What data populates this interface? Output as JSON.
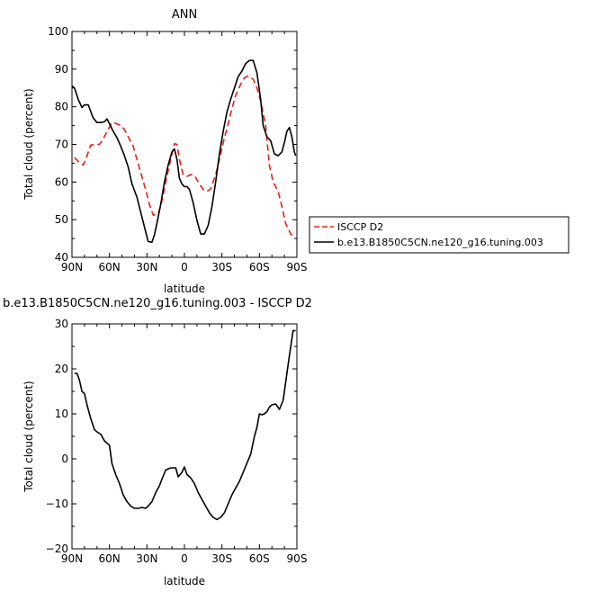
{
  "chart_data": [
    {
      "type": "line",
      "title": "ANN",
      "xlabel": "latitude",
      "ylabel": "Total cloud (percent)",
      "xlim": [
        90,
        -90
      ],
      "ylim": [
        40,
        100
      ],
      "x_ticks": [
        90,
        60,
        30,
        0,
        -30,
        -60,
        -90
      ],
      "x_tick_labels": [
        "90N",
        "60N",
        "30N",
        "0",
        "30S",
        "60S",
        "90S"
      ],
      "y_ticks": [
        40,
        50,
        60,
        70,
        80,
        90,
        100
      ],
      "y_tick_labels": [
        "40",
        "50",
        "60",
        "70",
        "80",
        "90",
        "100"
      ],
      "legend_position": "outside-right",
      "series": [
        {
          "name": "ISCCP D2",
          "color": "#e8201c",
          "dash": "dashed",
          "x": [
            88,
            85,
            81,
            78,
            75,
            71,
            68,
            65,
            61,
            58,
            55,
            51,
            48,
            45,
            41,
            38,
            35,
            31,
            28,
            25,
            21,
            18,
            15,
            11,
            8,
            6,
            4,
            1,
            -2,
            -5,
            -8,
            -11,
            -15,
            -18,
            -21,
            -25,
            -28,
            -31,
            -35,
            -38,
            -41,
            -45,
            -48,
            -51,
            -55,
            -58,
            -61,
            -65,
            -68,
            -71,
            -75,
            -78,
            -81,
            -85,
            -88
          ],
          "y": [
            66.5,
            65.5,
            64.5,
            67,
            69.8,
            70,
            70,
            71.5,
            74,
            75.8,
            75.6,
            75,
            74,
            72,
            69.5,
            66,
            62.5,
            58,
            54,
            51.2,
            51.5,
            55,
            60,
            66,
            70.2,
            70,
            66,
            62,
            61.5,
            62,
            61.8,
            60,
            58,
            57.5,
            58.2,
            62,
            66,
            70.5,
            75.5,
            79.5,
            83,
            86,
            87.7,
            88.2,
            87.3,
            85,
            81.5,
            75,
            64.5,
            60,
            57.5,
            53.5,
            49,
            46.2,
            45.5
          ]
        },
        {
          "name": "b.e13.B1850C5CN.ne120_g16.tuning.003",
          "color": "#000000",
          "dash": "solid",
          "x": [
            90,
            88,
            85,
            82,
            80,
            77,
            73,
            70,
            67,
            64,
            62,
            60,
            57,
            54,
            51,
            48,
            45,
            42,
            38,
            35,
            32,
            29,
            26,
            24,
            22,
            19,
            16,
            13,
            10,
            8,
            6,
            4,
            2,
            0,
            -2,
            -4,
            -7,
            -10,
            -13,
            -16,
            -19,
            -22,
            -25,
            -28,
            -31,
            -34,
            -37,
            -40,
            -43,
            -46,
            -49,
            -52,
            -55,
            -58,
            -61,
            -63,
            -66,
            -69,
            -72,
            -75,
            -78,
            -80,
            -82,
            -84,
            -86,
            -88,
            -89
          ],
          "y": [
            85.5,
            85,
            82,
            79.8,
            80.5,
            80.5,
            77,
            75.8,
            75.8,
            76,
            76.8,
            75.5,
            73.5,
            71.8,
            69.5,
            67,
            64,
            59.5,
            56,
            52,
            48,
            44.2,
            44,
            46,
            49,
            54,
            60,
            64.5,
            68,
            68.8,
            66,
            61,
            59.5,
            58.8,
            58.8,
            58,
            54.5,
            49.8,
            46.2,
            46.2,
            48.5,
            53.5,
            60,
            67.5,
            73.5,
            78.5,
            82,
            85,
            88,
            89.5,
            91.5,
            92.3,
            92.3,
            89,
            82,
            75,
            72,
            71,
            67.5,
            67,
            68,
            70.5,
            73.5,
            74.5,
            72,
            68,
            67
          ]
        }
      ]
    },
    {
      "type": "line",
      "title": "b.e13.B1850C5CN.ne120_g16.tuning.003 - ISCCP D2",
      "xlabel": "latitude",
      "ylabel": "Total cloud (percent)",
      "xlim": [
        90,
        -90
      ],
      "ylim": [
        -20,
        30
      ],
      "x_ticks": [
        90,
        60,
        30,
        0,
        -30,
        -60,
        -90
      ],
      "x_tick_labels": [
        "90N",
        "60N",
        "30N",
        "0",
        "30S",
        "60S",
        "90S"
      ],
      "y_ticks": [
        -20,
        -10,
        0,
        10,
        20,
        30
      ],
      "y_tick_labels": [
        "−20",
        "−10",
        "0",
        "10",
        "20",
        "30"
      ],
      "series": [
        {
          "color": "#000000",
          "dash": "solid",
          "x": [
            88,
            86,
            84,
            82,
            80,
            78,
            75,
            72,
            70,
            67,
            64,
            62,
            60,
            58,
            55,
            52,
            49,
            46,
            43,
            40,
            37,
            34,
            31,
            29,
            26,
            23,
            20,
            18,
            15,
            12,
            10,
            7,
            5,
            2,
            0,
            -2,
            -5,
            -8,
            -11,
            -14,
            -17,
            -20,
            -23,
            -26,
            -29,
            -32,
            -35,
            -38,
            -41,
            -44,
            -47,
            -50,
            -53,
            -56,
            -58,
            -60,
            -62,
            -64,
            -66,
            -68,
            -70,
            -73,
            -76,
            -79,
            -81,
            -84,
            -87,
            -89
          ],
          "y": [
            19,
            19,
            17.5,
            15,
            14.5,
            12,
            9,
            6.5,
            6,
            5.5,
            4,
            3.5,
            3,
            -1,
            -3.5,
            -5.5,
            -8,
            -9.5,
            -10.5,
            -11,
            -11,
            -10.8,
            -11,
            -10.5,
            -9.5,
            -7.5,
            -6,
            -4.5,
            -2.5,
            -2.1,
            -2,
            -2,
            -4,
            -3,
            -1.8,
            -3.5,
            -4.2,
            -5.5,
            -7.5,
            -9,
            -10.5,
            -12,
            -13,
            -13.5,
            -13,
            -12,
            -10,
            -8,
            -6.5,
            -5,
            -3,
            -1,
            1,
            5,
            7,
            10,
            9.8,
            10,
            10.5,
            11.5,
            12,
            12.2,
            11,
            13,
            17,
            23,
            28.5,
            28.5
          ]
        }
      ]
    }
  ]
}
